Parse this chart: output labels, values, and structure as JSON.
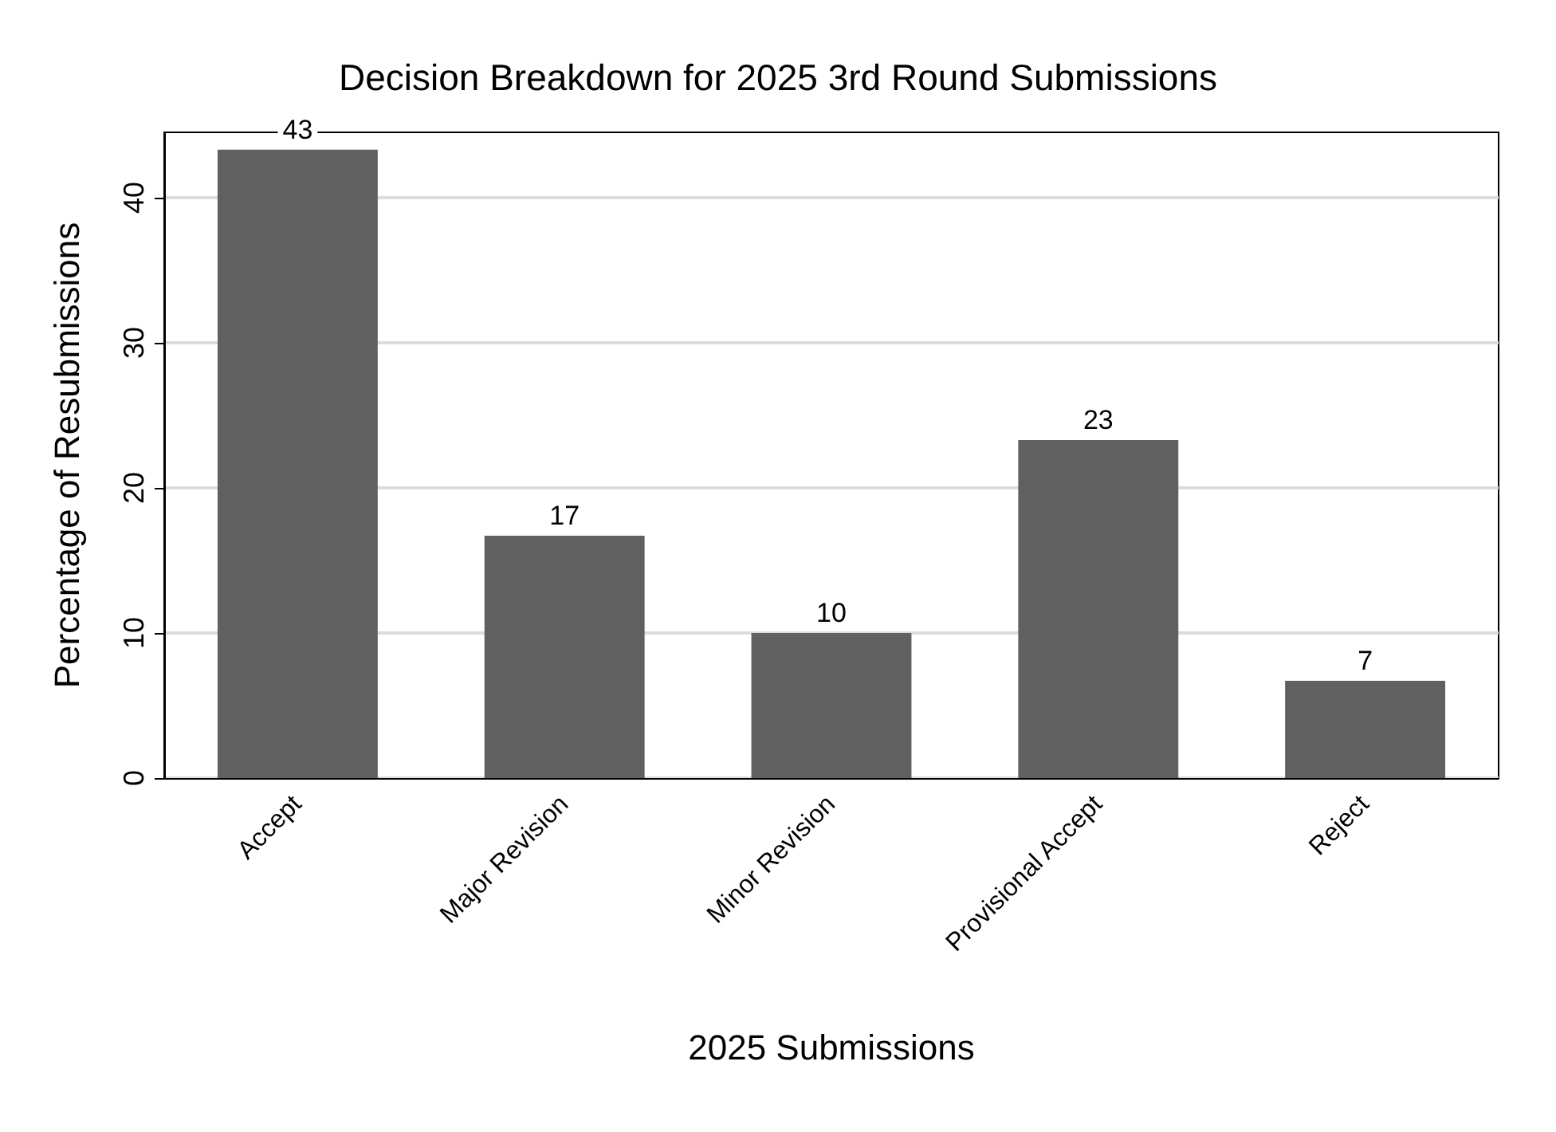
{
  "chart_data": {
    "type": "bar",
    "title": "Decision Breakdown for 2025 3rd Round Submissions",
    "xlabel": "2025 Submissions",
    "ylabel": "Percentage of Resubmissions",
    "categories": [
      "Accept",
      "Major Revision",
      "Minor Revision",
      "Provisional Accept",
      "Reject"
    ],
    "values": [
      43.3,
      16.7,
      10,
      23.3,
      6.7
    ],
    "value_labels": [
      "43",
      "17",
      "10",
      "23",
      "7"
    ],
    "color": "#606060",
    "ylim": [
      0,
      44.5
    ],
    "yticks": [
      0,
      10,
      20,
      30,
      40
    ],
    "grid": "y"
  }
}
